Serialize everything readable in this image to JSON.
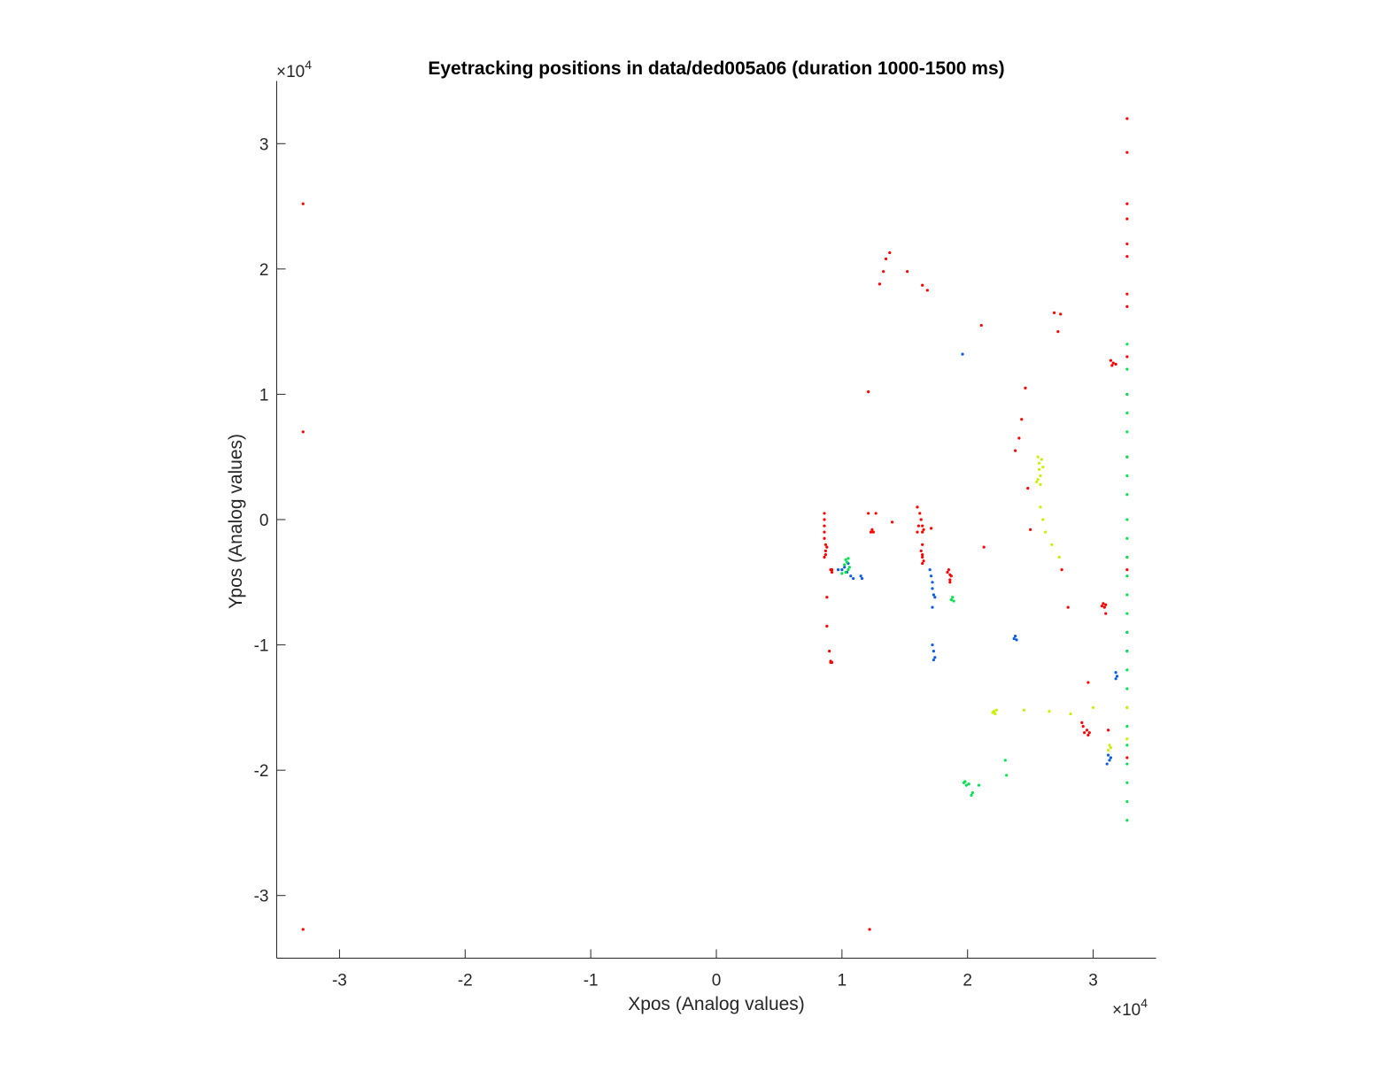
{
  "chart_data": {
    "type": "scatter",
    "title": "Eyetracking positions in data/ded005a06 (duration 1000-1500 ms)",
    "xlabel": "Xpos (Analog values)",
    "ylabel": "Ypos (Analog values)",
    "xlim": [
      -3.5,
      3.5
    ],
    "ylim": [
      -3.5,
      3.5
    ],
    "x_exponent_base": "×10",
    "x_exponent_power": "4",
    "y_exponent_base": "×10",
    "y_exponent_power": "4",
    "xticks": [
      "-3",
      "-2",
      "-1",
      "0",
      "1",
      "2",
      "3"
    ],
    "yticks": [
      "-3",
      "-2",
      "-1",
      "0",
      "1",
      "2",
      "3"
    ],
    "grid": false,
    "legend": "none",
    "series": [
      {
        "color": "#ff0000",
        "points": [
          [
            0.86,
            0.05
          ],
          [
            0.86,
            0.0
          ],
          [
            0.86,
            -0.05
          ],
          [
            0.86,
            -0.1
          ],
          [
            0.86,
            -0.15
          ],
          [
            0.87,
            -0.2
          ],
          [
            0.87,
            -0.25
          ],
          [
            0.87,
            -0.28
          ],
          [
            0.86,
            -0.3
          ],
          [
            0.88,
            -0.22
          ],
          [
            0.91,
            -0.4
          ],
          [
            0.92,
            -0.42
          ],
          [
            0.92,
            -0.4
          ],
          [
            0.91,
            -1.13
          ],
          [
            0.92,
            -1.14
          ],
          [
            0.91,
            -1.14
          ],
          [
            0.9,
            -1.05
          ],
          [
            1.24,
            -0.08
          ],
          [
            1.25,
            -0.1
          ],
          [
            1.23,
            -0.1
          ],
          [
            1.21,
            0.05
          ],
          [
            1.27,
            0.05
          ],
          [
            1.6,
            0.1
          ],
          [
            1.62,
            0.05
          ],
          [
            1.63,
            0.0
          ],
          [
            1.64,
            -0.05
          ],
          [
            1.64,
            -0.1
          ],
          [
            1.6,
            -0.1
          ],
          [
            1.61,
            -0.05
          ],
          [
            1.65,
            -0.08
          ],
          [
            1.64,
            -0.2
          ],
          [
            1.63,
            -0.25
          ],
          [
            1.64,
            -0.3
          ],
          [
            1.65,
            -0.33
          ],
          [
            1.64,
            -0.35
          ],
          [
            1.64,
            -0.28
          ],
          [
            1.85,
            -0.4
          ],
          [
            1.86,
            -0.44
          ],
          [
            1.86,
            -0.48
          ],
          [
            1.87,
            -0.45
          ],
          [
            1.84,
            -0.42
          ],
          [
            1.86,
            -0.5
          ],
          [
            3.08,
            -0.67
          ],
          [
            3.09,
            -0.7
          ],
          [
            3.1,
            -0.68
          ],
          [
            3.07,
            -0.69
          ],
          [
            2.92,
            -1.65
          ],
          [
            2.93,
            -1.7
          ],
          [
            2.95,
            -1.68
          ],
          [
            2.96,
            -1.72
          ],
          [
            2.91,
            -1.62
          ],
          [
            2.97,
            -1.7
          ],
          [
            3.14,
            1.27
          ],
          [
            3.16,
            1.25
          ],
          [
            3.18,
            1.24
          ],
          [
            3.15,
            1.23
          ],
          [
            3.27,
            3.2
          ],
          [
            3.27,
            2.93
          ],
          [
            3.27,
            2.52
          ],
          [
            3.27,
            2.4
          ],
          [
            3.27,
            2.2
          ],
          [
            3.27,
            2.1
          ],
          [
            3.27,
            1.8
          ],
          [
            3.27,
            1.7
          ],
          [
            3.27,
            1.3
          ],
          [
            3.27,
            1.0
          ],
          [
            3.27,
            0.5
          ],
          [
            3.27,
            -0.3
          ],
          [
            3.27,
            -0.4
          ],
          [
            3.27,
            -1.9
          ],
          [
            1.38,
            2.13
          ],
          [
            1.35,
            2.08
          ],
          [
            1.33,
            1.98
          ],
          [
            1.3,
            1.88
          ],
          [
            1.52,
            1.98
          ],
          [
            1.64,
            1.87
          ],
          [
            1.68,
            1.83
          ],
          [
            2.69,
            1.65
          ],
          [
            2.74,
            1.64
          ],
          [
            2.72,
            1.5
          ],
          [
            2.11,
            1.55
          ],
          [
            2.46,
            1.05
          ],
          [
            2.43,
            0.8
          ],
          [
            2.41,
            0.65
          ],
          [
            2.38,
            0.55
          ],
          [
            1.21,
            1.02
          ],
          [
            2.13,
            -0.22
          ],
          [
            2.48,
            0.25
          ],
          [
            2.5,
            -0.08
          ],
          [
            2.75,
            -0.4
          ],
          [
            2.8,
            -0.7
          ],
          [
            2.96,
            -1.3
          ],
          [
            3.12,
            -1.68
          ],
          [
            0.88,
            -0.62
          ],
          [
            0.88,
            -0.85
          ],
          [
            -3.29,
            2.52
          ],
          [
            -3.29,
            0.7
          ],
          [
            -3.29,
            -3.27
          ],
          [
            1.22,
            -3.27
          ],
          [
            1.4,
            -0.02
          ],
          [
            1.71,
            -0.07
          ],
          [
            3.1,
            -0.75
          ]
        ]
      },
      {
        "color": "#0a5de0",
        "points": [
          [
            0.97,
            -0.4
          ],
          [
            1.0,
            -0.4
          ],
          [
            1.02,
            -0.38
          ],
          [
            1.05,
            -0.35
          ],
          [
            1.07,
            -0.45
          ],
          [
            1.09,
            -0.47
          ],
          [
            1.04,
            -0.42
          ],
          [
            1.15,
            -0.45
          ],
          [
            1.16,
            -0.47
          ],
          [
            1.7,
            -0.4
          ],
          [
            1.71,
            -0.45
          ],
          [
            1.72,
            -0.5
          ],
          [
            1.72,
            -0.55
          ],
          [
            1.73,
            -0.6
          ],
          [
            1.74,
            -0.62
          ],
          [
            1.72,
            -0.7
          ],
          [
            1.72,
            -1.0
          ],
          [
            1.73,
            -1.05
          ],
          [
            1.74,
            -1.1
          ],
          [
            1.73,
            -1.12
          ],
          [
            2.37,
            -0.95
          ],
          [
            2.38,
            -0.93
          ],
          [
            2.39,
            -0.96
          ],
          [
            3.18,
            -1.22
          ],
          [
            3.19,
            -1.25
          ],
          [
            3.18,
            -1.27
          ],
          [
            3.12,
            -1.88
          ],
          [
            3.13,
            -1.92
          ],
          [
            3.11,
            -1.95
          ],
          [
            3.14,
            -1.9
          ],
          [
            3.27,
            -0.9
          ],
          [
            3.27,
            -1.05
          ],
          [
            1.96,
            1.32
          ]
        ]
      },
      {
        "color": "#00e050",
        "points": [
          [
            1.03,
            -0.32
          ],
          [
            1.04,
            -0.34
          ],
          [
            1.05,
            -0.31
          ],
          [
            1.02,
            -0.36
          ],
          [
            1.06,
            -0.38
          ],
          [
            1.03,
            -0.42
          ],
          [
            1.05,
            -0.4
          ],
          [
            1.0,
            -0.43
          ],
          [
            1.88,
            -0.62
          ],
          [
            1.89,
            -0.65
          ],
          [
            1.87,
            -0.64
          ],
          [
            1.97,
            -2.1
          ],
          [
            1.99,
            -2.12
          ],
          [
            1.98,
            -2.09
          ],
          [
            2.01,
            -2.11
          ],
          [
            2.04,
            -2.18
          ],
          [
            3.27,
            1.4
          ],
          [
            3.27,
            1.2
          ],
          [
            3.27,
            1.0
          ],
          [
            3.27,
            0.85
          ],
          [
            3.27,
            0.7
          ],
          [
            3.27,
            0.5
          ],
          [
            3.27,
            0.35
          ],
          [
            3.27,
            0.2
          ],
          [
            3.27,
            0.0
          ],
          [
            3.27,
            -0.15
          ],
          [
            3.27,
            -0.3
          ],
          [
            3.27,
            -0.45
          ],
          [
            3.27,
            -0.6
          ],
          [
            3.27,
            -0.75
          ],
          [
            3.27,
            -0.9
          ],
          [
            3.27,
            -1.05
          ],
          [
            3.27,
            -1.2
          ],
          [
            3.27,
            -1.35
          ],
          [
            3.27,
            -1.5
          ],
          [
            3.27,
            -1.65
          ],
          [
            3.27,
            -1.8
          ],
          [
            3.27,
            -1.95
          ],
          [
            3.27,
            -2.1
          ],
          [
            3.27,
            -2.25
          ],
          [
            3.27,
            -2.4
          ],
          [
            2.31,
            -2.04
          ],
          [
            2.3,
            -1.92
          ],
          [
            2.09,
            -2.12
          ],
          [
            2.03,
            -2.2
          ]
        ]
      },
      {
        "color": "#ccee00",
        "points": [
          [
            2.56,
            0.5
          ],
          [
            2.57,
            0.45
          ],
          [
            2.57,
            0.4
          ],
          [
            2.58,
            0.35
          ],
          [
            2.56,
            0.32
          ],
          [
            2.58,
            0.28
          ],
          [
            2.59,
            0.48
          ],
          [
            2.6,
            0.42
          ],
          [
            2.55,
            0.3
          ],
          [
            2.58,
            0.1
          ],
          [
            2.6,
            0.0
          ],
          [
            2.62,
            -0.1
          ],
          [
            2.67,
            -0.2
          ],
          [
            2.73,
            -0.3
          ],
          [
            2.21,
            -1.53
          ],
          [
            2.22,
            -1.55
          ],
          [
            2.23,
            -1.52
          ],
          [
            2.2,
            -1.54
          ],
          [
            3.13,
            -1.8
          ],
          [
            3.14,
            -1.82
          ],
          [
            3.12,
            -1.84
          ],
          [
            2.45,
            -1.52
          ],
          [
            2.65,
            -1.53
          ],
          [
            2.82,
            -1.55
          ],
          [
            3.27,
            -1.5
          ],
          [
            3.27,
            -1.75
          ],
          [
            3.0,
            -1.5
          ]
        ]
      }
    ]
  }
}
